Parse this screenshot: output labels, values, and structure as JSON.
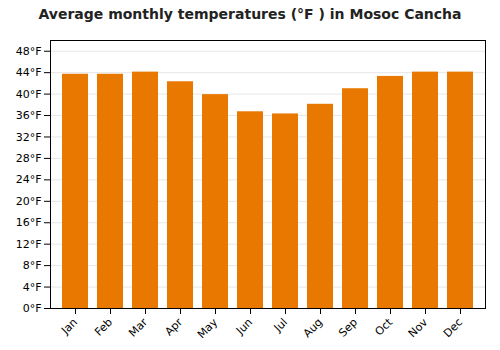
{
  "chart_data": {
    "type": "bar",
    "title": "Average monthly temperatures (°F ) in Mosoc Cancha",
    "categories": [
      "Jan",
      "Feb",
      "Mar",
      "Apr",
      "May",
      "Jun",
      "Jul",
      "Aug",
      "Sep",
      "Oct",
      "Nov",
      "Dec"
    ],
    "values": [
      43.7,
      43.7,
      44.1,
      42.3,
      39.9,
      36.7,
      36.3,
      38.1,
      41.0,
      43.3,
      44.1,
      44.1
    ],
    "color": "#E87800",
    "ylim": [
      0,
      50
    ],
    "yticks": [
      {
        "value": 0,
        "label": "0°F"
      },
      {
        "value": 4,
        "label": "4°F"
      },
      {
        "value": 8,
        "label": "8°F"
      },
      {
        "value": 12,
        "label": "12°F"
      },
      {
        "value": 16,
        "label": "16°F"
      },
      {
        "value": 20,
        "label": "20°F"
      },
      {
        "value": 24,
        "label": "24°F"
      },
      {
        "value": 28,
        "label": "28°F"
      },
      {
        "value": 32,
        "label": "32°F"
      },
      {
        "value": 36,
        "label": "36°F"
      },
      {
        "value": 40,
        "label": "40°F"
      },
      {
        "value": 44,
        "label": "44°F"
      },
      {
        "value": 48,
        "label": "48°F"
      }
    ],
    "grid": true
  }
}
